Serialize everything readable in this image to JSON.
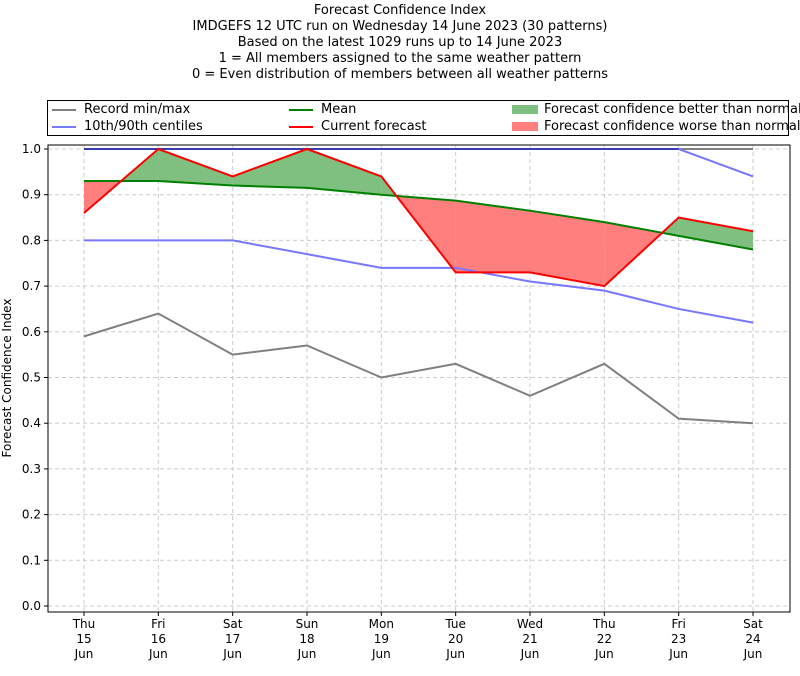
{
  "chart_data": {
    "type": "line",
    "title_lines": [
      "Forecast Confidence Index",
      "IMDGEFS 12 UTC run on Wednesday 14 June 2023 (30 patterns)",
      "Based on the latest 1029 runs up to 14 June 2023",
      "1 = All members assigned to the same weather pattern",
      "0 = Even distribution of members between all weather patterns"
    ],
    "ylabel": "Forecast Confidence Index",
    "xlabel": "",
    "ylim": [
      0,
      1.0
    ],
    "yticks": [
      "0.0",
      "0.1",
      "0.2",
      "0.3",
      "0.4",
      "0.5",
      "0.6",
      "0.7",
      "0.8",
      "0.9",
      "1.0"
    ],
    "grid": true,
    "legend_placement": "top (above plot)",
    "categories": [
      [
        "Thu",
        "15",
        "Jun"
      ],
      [
        "Fri",
        "16",
        "Jun"
      ],
      [
        "Sat",
        "17",
        "Jun"
      ],
      [
        "Sun",
        "18",
        "Jun"
      ],
      [
        "Mon",
        "19",
        "Jun"
      ],
      [
        "Tue",
        "20",
        "Jun"
      ],
      [
        "Wed",
        "21",
        "Jun"
      ],
      [
        "Thu",
        "22",
        "Jun"
      ],
      [
        "Fri",
        "23",
        "Jun"
      ],
      [
        "Sat",
        "24",
        "Jun"
      ]
    ],
    "series": [
      {
        "name": "Record min/max",
        "role": "max",
        "color": "#808080",
        "values": [
          1.0,
          1.0,
          1.0,
          1.0,
          1.0,
          1.0,
          1.0,
          1.0,
          1.0,
          1.0
        ]
      },
      {
        "name": "Record min/max",
        "role": "min",
        "color": "#808080",
        "values": [
          0.59,
          0.64,
          0.55,
          0.57,
          0.5,
          0.53,
          0.46,
          0.53,
          0.41,
          0.4
        ]
      },
      {
        "name": "10th/90th centiles",
        "role": "p90",
        "color": "#7777ff",
        "values": [
          1.0,
          1.0,
          1.0,
          1.0,
          1.0,
          1.0,
          1.0,
          1.0,
          1.0,
          0.94
        ]
      },
      {
        "name": "10th/90th centiles",
        "role": "p10",
        "color": "#7777ff",
        "values": [
          0.8,
          0.8,
          0.8,
          0.77,
          0.74,
          0.74,
          0.71,
          0.69,
          0.65,
          0.62
        ]
      },
      {
        "name": "Mean",
        "role": "mean",
        "color": "#008000",
        "values": [
          0.93,
          0.93,
          0.92,
          0.915,
          0.9,
          0.887,
          0.865,
          0.84,
          0.81,
          0.78
        ]
      },
      {
        "name": "Current forecast",
        "role": "current",
        "color": "#ff0000",
        "values": [
          0.86,
          1.0,
          0.94,
          1.0,
          0.94,
          0.73,
          0.73,
          0.7,
          0.85,
          0.82
        ]
      }
    ],
    "fills": [
      {
        "name": "Forecast confidence better than normal",
        "color": "#7fbf7f"
      },
      {
        "name": "Forecast confidence worse than normal",
        "color": "#ff7f7f"
      }
    ]
  }
}
